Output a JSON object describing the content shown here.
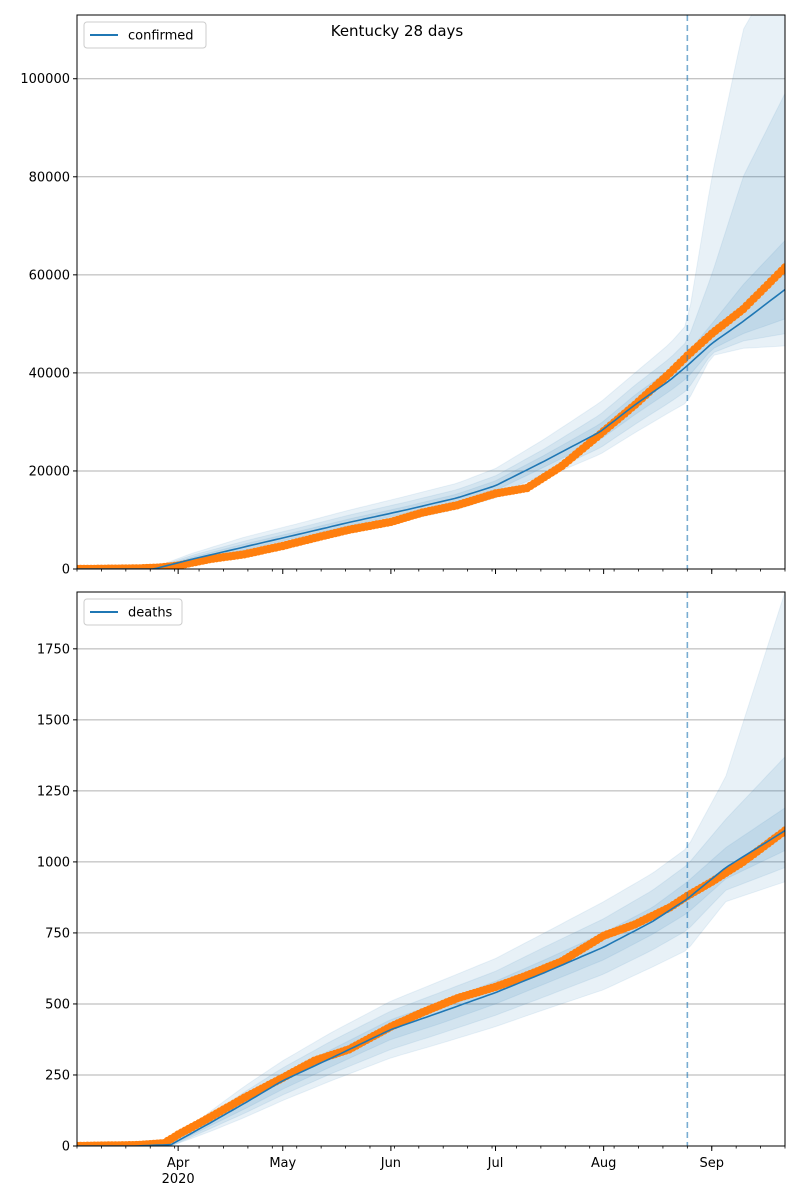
{
  "title": "Kentucky 28 days",
  "chart_data": [
    {
      "type": "line",
      "legend": [
        "confirmed"
      ],
      "legend_position": "top-left",
      "grid": "horizontal",
      "xlim": [
        "2020-03-03",
        "2020-09-22"
      ],
      "ylim": [
        0,
        113000
      ],
      "yticks": [
        0,
        20000,
        40000,
        60000,
        80000,
        100000
      ],
      "vline_date": "2020-08-25",
      "model_series": {
        "name": "confirmed",
        "x": [
          "2020-03-03",
          "2020-03-15",
          "2020-03-25",
          "2020-04-05",
          "2020-04-20",
          "2020-05-05",
          "2020-05-20",
          "2020-06-05",
          "2020-06-20",
          "2020-07-01",
          "2020-07-15",
          "2020-07-31",
          "2020-08-10",
          "2020-08-20",
          "2020-08-25",
          "2020-09-01",
          "2020-09-10",
          "2020-09-22"
        ],
        "values": [
          0,
          0,
          0,
          2000,
          4500,
          7000,
          9500,
          12000,
          14500,
          17000,
          22000,
          28000,
          33500,
          38500,
          41500,
          46000,
          50500,
          57000
        ]
      },
      "bands": [
        {
          "lower": [
            0,
            0,
            0,
            1000,
            3000,
            5300,
            7600,
            9900,
            12200,
            14500,
            18600,
            23400,
            27800,
            32000,
            34000,
            43500,
            45000,
            45500
          ],
          "upper": [
            0,
            0,
            300,
            3200,
            6500,
            9200,
            12000,
            14800,
            17500,
            20500,
            26500,
            34000,
            40000,
            46000,
            50000,
            80000,
            110000,
            125000
          ]
        },
        {
          "lower": [
            0,
            0,
            0,
            1300,
            3400,
            5800,
            8100,
            10500,
            12800,
            15100,
            19400,
            24700,
            29500,
            34000,
            36500,
            44000,
            46500,
            48000
          ],
          "upper": [
            0,
            0,
            200,
            2800,
            5700,
            8300,
            11000,
            13600,
            16200,
            19000,
            24500,
            31500,
            37500,
            43000,
            46500,
            60000,
            80000,
            97000
          ]
        },
        {
          "lower": [
            0,
            0,
            0,
            1600,
            3900,
            6400,
            8800,
            11300,
            13700,
            16000,
            20800,
            26400,
            31500,
            36300,
            39000,
            44800,
            48000,
            51000
          ],
          "upper": [
            0,
            0,
            100,
            2400,
            5100,
            7600,
            10200,
            12700,
            15300,
            18000,
            23200,
            29600,
            35500,
            40700,
            44000,
            50000,
            58000,
            67000
          ]
        }
      ],
      "observed": {
        "x": [
          "2020-03-03",
          "2020-03-20",
          "2020-03-27",
          "2020-04-01",
          "2020-04-10",
          "2020-04-20",
          "2020-05-01",
          "2020-05-10",
          "2020-05-20",
          "2020-06-01",
          "2020-06-10",
          "2020-06-20",
          "2020-07-01",
          "2020-07-10",
          "2020-07-20",
          "2020-07-31",
          "2020-08-10",
          "2020-08-20",
          "2020-08-25",
          "2020-09-01",
          "2020-09-10",
          "2020-09-22"
        ],
        "values": [
          0,
          100,
          300,
          700,
          2000,
          3000,
          4700,
          6300,
          8000,
          9600,
          11500,
          13000,
          15400,
          16500,
          21000,
          27500,
          33500,
          40000,
          43500,
          48000,
          53000,
          61500
        ]
      }
    },
    {
      "type": "line",
      "legend": [
        "deaths"
      ],
      "legend_position": "top-left",
      "grid": "horizontal",
      "xlim": [
        "2020-03-03",
        "2020-09-22"
      ],
      "ylim": [
        0,
        1950
      ],
      "yticks": [
        0,
        250,
        500,
        750,
        1000,
        1250,
        1500,
        1750
      ],
      "xticks": [
        "Apr",
        "May",
        "Jun",
        "Jul",
        "Aug",
        "Sep"
      ],
      "xticks_dates": [
        "2020-04-01",
        "2020-05-01",
        "2020-06-01",
        "2020-07-01",
        "2020-08-01",
        "2020-09-01"
      ],
      "year_label": "2020",
      "vline_date": "2020-08-25",
      "model_series": {
        "name": "deaths",
        "x": [
          "2020-03-03",
          "2020-03-20",
          "2020-03-30",
          "2020-04-10",
          "2020-04-20",
          "2020-05-01",
          "2020-05-15",
          "2020-06-01",
          "2020-06-15",
          "2020-07-01",
          "2020-07-15",
          "2020-08-01",
          "2020-08-15",
          "2020-08-25",
          "2020-09-05",
          "2020-09-22"
        ],
        "values": [
          0,
          0,
          5,
          80,
          150,
          230,
          310,
          410,
          470,
          540,
          610,
          700,
          790,
          870,
          980,
          1110
        ]
      },
      "bands": [
        {
          "lower": [
            0,
            0,
            0,
            50,
            100,
            160,
            230,
            310,
            360,
            420,
            480,
            550,
            630,
            690,
            860,
            930
          ],
          "upper": [
            0,
            0,
            10,
            120,
            210,
            300,
            400,
            510,
            580,
            660,
            750,
            860,
            960,
            1050,
            1300,
            1950
          ]
        },
        {
          "lower": [
            0,
            0,
            0,
            60,
            115,
            180,
            255,
            340,
            395,
            460,
            525,
            605,
            690,
            760,
            900,
            980
          ],
          "upper": [
            0,
            0,
            8,
            105,
            190,
            275,
            370,
            475,
            540,
            615,
            700,
            800,
            900,
            990,
            1150,
            1370
          ]
        },
        {
          "lower": [
            0,
            0,
            2,
            70,
            130,
            200,
            280,
            375,
            430,
            500,
            570,
            655,
            745,
            820,
            940,
            1040
          ],
          "upper": [
            0,
            0,
            6,
            92,
            170,
            255,
            340,
            445,
            505,
            580,
            655,
            750,
            840,
            930,
            1050,
            1190
          ]
        }
      ],
      "observed": {
        "x": [
          "2020-03-03",
          "2020-03-20",
          "2020-03-28",
          "2020-04-01",
          "2020-04-10",
          "2020-04-20",
          "2020-05-01",
          "2020-05-10",
          "2020-05-20",
          "2020-06-01",
          "2020-06-10",
          "2020-06-20",
          "2020-07-01",
          "2020-07-10",
          "2020-07-20",
          "2020-08-01",
          "2020-08-10",
          "2020-08-20",
          "2020-08-25",
          "2020-09-01",
          "2020-09-10",
          "2020-09-22"
        ],
        "values": [
          0,
          3,
          10,
          40,
          100,
          170,
          240,
          300,
          340,
          420,
          470,
          520,
          560,
          600,
          650,
          740,
          780,
          840,
          880,
          930,
          1000,
          1110
        ]
      }
    }
  ]
}
